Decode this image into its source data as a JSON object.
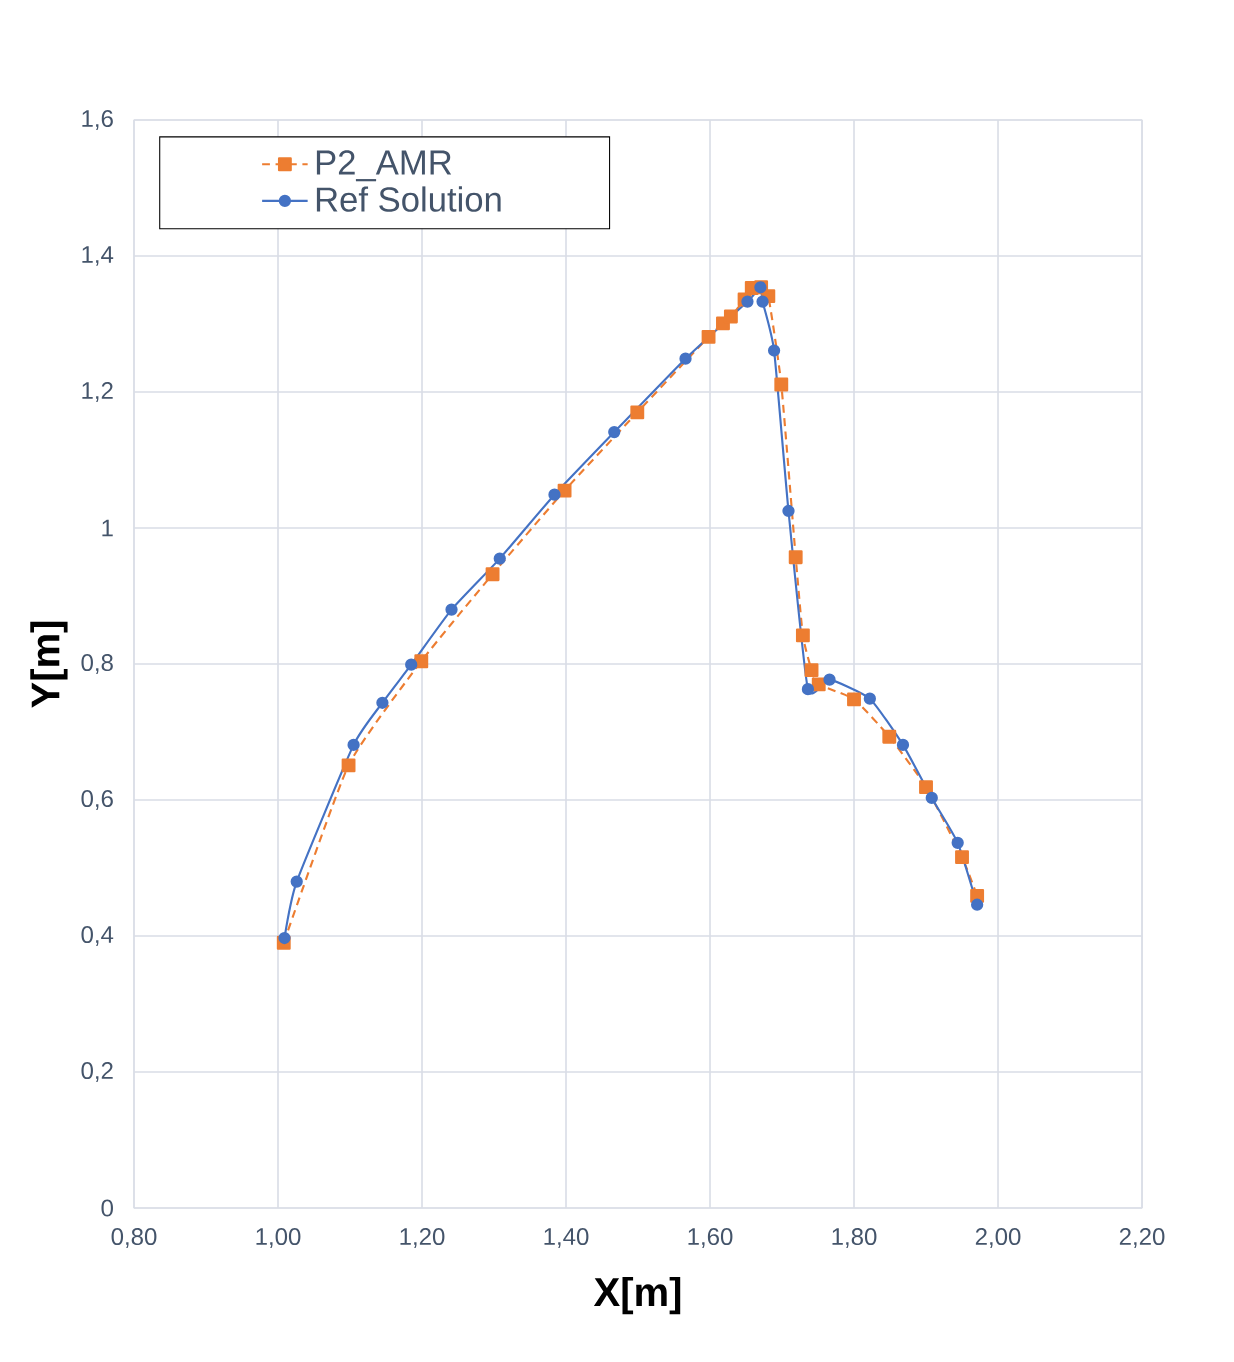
{
  "chart_data": {
    "type": "line",
    "xlabel": "X[m]",
    "ylabel": "Y[m]",
    "xlim": [
      0.8,
      2.2
    ],
    "ylim": [
      0,
      1.6
    ],
    "xticks": [
      {
        "value": 0.8,
        "label": "0,80"
      },
      {
        "value": 1.0,
        "label": "1,00"
      },
      {
        "value": 1.2,
        "label": "1,20"
      },
      {
        "value": 1.4,
        "label": "1,40"
      },
      {
        "value": 1.6,
        "label": "1,60"
      },
      {
        "value": 1.8,
        "label": "1,80"
      },
      {
        "value": 2.0,
        "label": "2,00"
      },
      {
        "value": 2.2,
        "label": "2,20"
      }
    ],
    "yticks": [
      0,
      {
        "value": 0.2,
        "label": "0,2"
      },
      {
        "value": 0.4,
        "label": "0,4"
      },
      {
        "value": 0.6,
        "label": "0,6"
      },
      {
        "value": 0.8,
        "label": "0,8"
      },
      1,
      {
        "value": 1.2,
        "label": "1,2"
      },
      {
        "value": 1.4,
        "label": "1,4"
      },
      {
        "value": 1.6,
        "label": "1,6"
      }
    ],
    "grid": true,
    "legend": "top left",
    "series": [
      {
        "name": "P2_AMR",
        "color": "#ed7d31",
        "marker": "square",
        "line_style": "dashed",
        "x": [
          1.008,
          1.098,
          1.199,
          1.298,
          1.398,
          1.499,
          1.598,
          1.618,
          1.629,
          1.648,
          1.658,
          1.671,
          1.681,
          1.699,
          1.719,
          1.729,
          1.741,
          1.751,
          1.8,
          1.849,
          1.9,
          1.95,
          1.971
        ],
        "values": [
          0.39,
          0.651,
          0.804,
          0.932,
          1.055,
          1.17,
          1.281,
          1.301,
          1.311,
          1.336,
          1.353,
          1.354,
          1.341,
          1.211,
          0.957,
          0.842,
          0.791,
          0.77,
          0.748,
          0.693,
          0.619,
          0.516,
          0.459
        ]
      },
      {
        "name": "Ref Solution",
        "color": "#4472c4",
        "marker": "circle",
        "line_style": "solid",
        "x": [
          1.009,
          1.026,
          1.105,
          1.145,
          1.185,
          1.241,
          1.308,
          1.384,
          1.467,
          1.566,
          1.652,
          1.67,
          1.673,
          1.689,
          1.709,
          1.736,
          1.766,
          1.822,
          1.868,
          1.908,
          1.944,
          1.971
        ],
        "values": [
          0.397,
          0.48,
          0.681,
          0.743,
          0.799,
          0.88,
          0.955,
          1.049,
          1.141,
          1.249,
          1.333,
          1.354,
          1.333,
          1.261,
          1.025,
          0.763,
          0.777,
          0.749,
          0.681,
          0.603,
          0.537,
          0.446
        ]
      }
    ]
  }
}
